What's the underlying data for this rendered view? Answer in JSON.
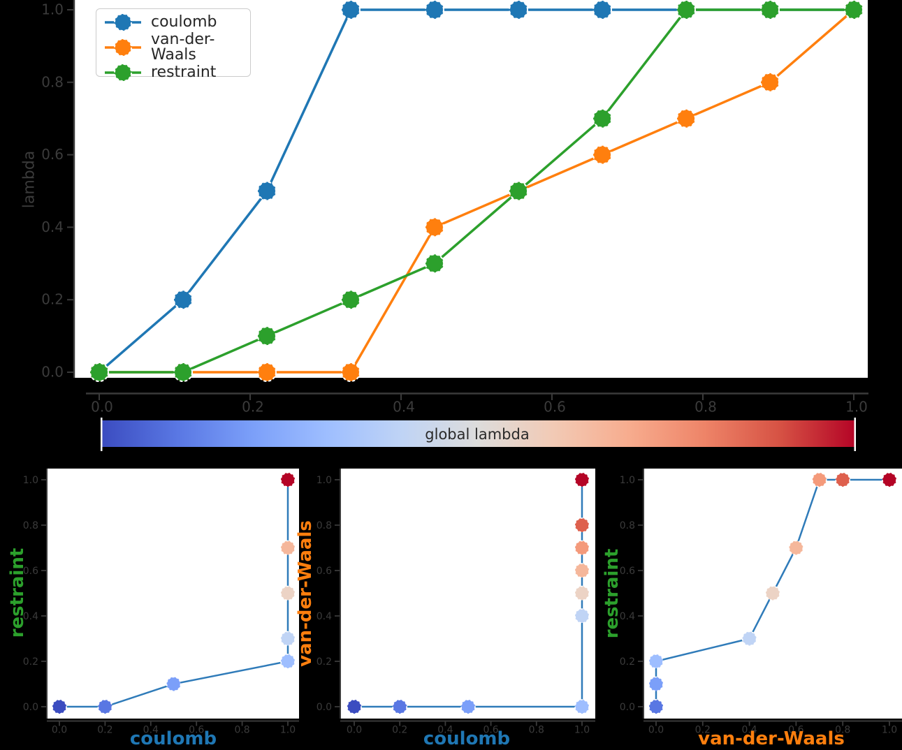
{
  "figure_background": "#000000",
  "axes_background": "#ffffff",
  "colors": {
    "coulomb": "#1f77b4",
    "van_der_waals": "#ff7f0e",
    "restraint": "#2ca02c",
    "subplot_line": "#2f7bb9",
    "spine": "#3a3a3a",
    "tick_label": "#3b3b3b",
    "legend_border": "#cbcbcb",
    "legend_text": "#262626"
  },
  "colormap": {
    "name": "coolwarm",
    "label": "global lambda",
    "gradient_stops": [
      "#3b4cc0",
      "#5977e3",
      "#7b9ff9",
      "#9ebeff",
      "#c0d4f5",
      "#dddcdb",
      "#f2cab5",
      "#f7ac8e",
      "#ee8468",
      "#d65244",
      "#b40426"
    ],
    "point_colors": [
      "#3b4cc0",
      "#5977e3",
      "#7b9ff9",
      "#9ebeff",
      "#c0d4f5",
      "#ecd3c5",
      "#f5b79b",
      "#f49a7b",
      "#de604d",
      "#b40426"
    ],
    "tick_labels": [
      "0.0",
      "0.2",
      "0.4",
      "0.6",
      "0.8",
      "1.0"
    ]
  },
  "chart_data": [
    {
      "type": "line",
      "title": "",
      "xlabel": "global lambda",
      "ylabel": "lambda",
      "xlim": [
        0,
        1
      ],
      "ylim": [
        0,
        1
      ],
      "grid": false,
      "legend_position": "upper left",
      "x": [
        0,
        0.1111,
        0.2222,
        0.3333,
        0.4444,
        0.5556,
        0.6667,
        0.7778,
        0.8889,
        1.0
      ],
      "series": [
        {
          "name": "coulomb",
          "color": "#1f77b4",
          "values": [
            0,
            0.2,
            0.5,
            1,
            1,
            1,
            1,
            1,
            1,
            1
          ]
        },
        {
          "name": "van-der-Waals",
          "color": "#ff7f0e",
          "values": [
            0,
            0,
            0,
            0,
            0.4,
            0.5,
            0.6,
            0.7,
            0.8,
            1
          ]
        },
        {
          "name": "restraint",
          "color": "#2ca02c",
          "values": [
            0,
            0,
            0.1,
            0.2,
            0.3,
            0.5,
            0.7,
            1,
            1,
            1
          ]
        }
      ],
      "xticks": [
        0,
        0.2,
        0.4,
        0.6,
        0.8,
        1
      ],
      "yticks": [
        0,
        0.2,
        0.4,
        0.6,
        0.8,
        1
      ]
    },
    {
      "type": "scatter",
      "xlabel": "coulomb",
      "ylabel": "restraint",
      "xlabel_color": "#1f77b4",
      "ylabel_color": "#2ca02c",
      "xlim": [
        0,
        1
      ],
      "ylim": [
        0,
        1
      ],
      "color_by": "global lambda",
      "points": [
        [
          0,
          0
        ],
        [
          0.2,
          0
        ],
        [
          0.5,
          0.1
        ],
        [
          1,
          0.2
        ],
        [
          1,
          0.3
        ],
        [
          1,
          0.5
        ],
        [
          1,
          0.7
        ],
        [
          1,
          1
        ],
        [
          1,
          1
        ],
        [
          1,
          1
        ]
      ],
      "xticks": [
        0,
        0.2,
        0.4,
        0.6,
        0.8,
        1
      ],
      "yticks": [
        0,
        0.2,
        0.4,
        0.6,
        0.8,
        1
      ]
    },
    {
      "type": "scatter",
      "xlabel": "coulomb",
      "ylabel": "van-der-Waals",
      "xlabel_color": "#1f77b4",
      "ylabel_color": "#ff7f0e",
      "xlim": [
        0,
        1
      ],
      "ylim": [
        0,
        1
      ],
      "color_by": "global lambda",
      "points": [
        [
          0,
          0
        ],
        [
          0.2,
          0
        ],
        [
          0.5,
          0
        ],
        [
          1,
          0
        ],
        [
          1,
          0.4
        ],
        [
          1,
          0.5
        ],
        [
          1,
          0.6
        ],
        [
          1,
          0.7
        ],
        [
          1,
          0.8
        ],
        [
          1,
          1
        ]
      ],
      "xticks": [
        0,
        0.2,
        0.4,
        0.6,
        0.8,
        1
      ],
      "yticks": [
        0,
        0.2,
        0.4,
        0.6,
        0.8,
        1
      ]
    },
    {
      "type": "scatter",
      "xlabel": "van-der-Waals",
      "ylabel": "restraint",
      "xlabel_color": "#ff7f0e",
      "ylabel_color": "#2ca02c",
      "xlim": [
        0,
        1
      ],
      "ylim": [
        0,
        1
      ],
      "color_by": "global lambda",
      "points": [
        [
          0,
          0
        ],
        [
          0,
          0
        ],
        [
          0,
          0.1
        ],
        [
          0,
          0.2
        ],
        [
          0.4,
          0.3
        ],
        [
          0.5,
          0.5
        ],
        [
          0.6,
          0.7
        ],
        [
          0.7,
          1
        ],
        [
          0.8,
          1
        ],
        [
          1,
          1
        ]
      ],
      "xticks": [
        0,
        0.2,
        0.4,
        0.6,
        0.8,
        1
      ],
      "yticks": [
        0,
        0.2,
        0.4,
        0.6,
        0.8,
        1
      ]
    }
  ]
}
